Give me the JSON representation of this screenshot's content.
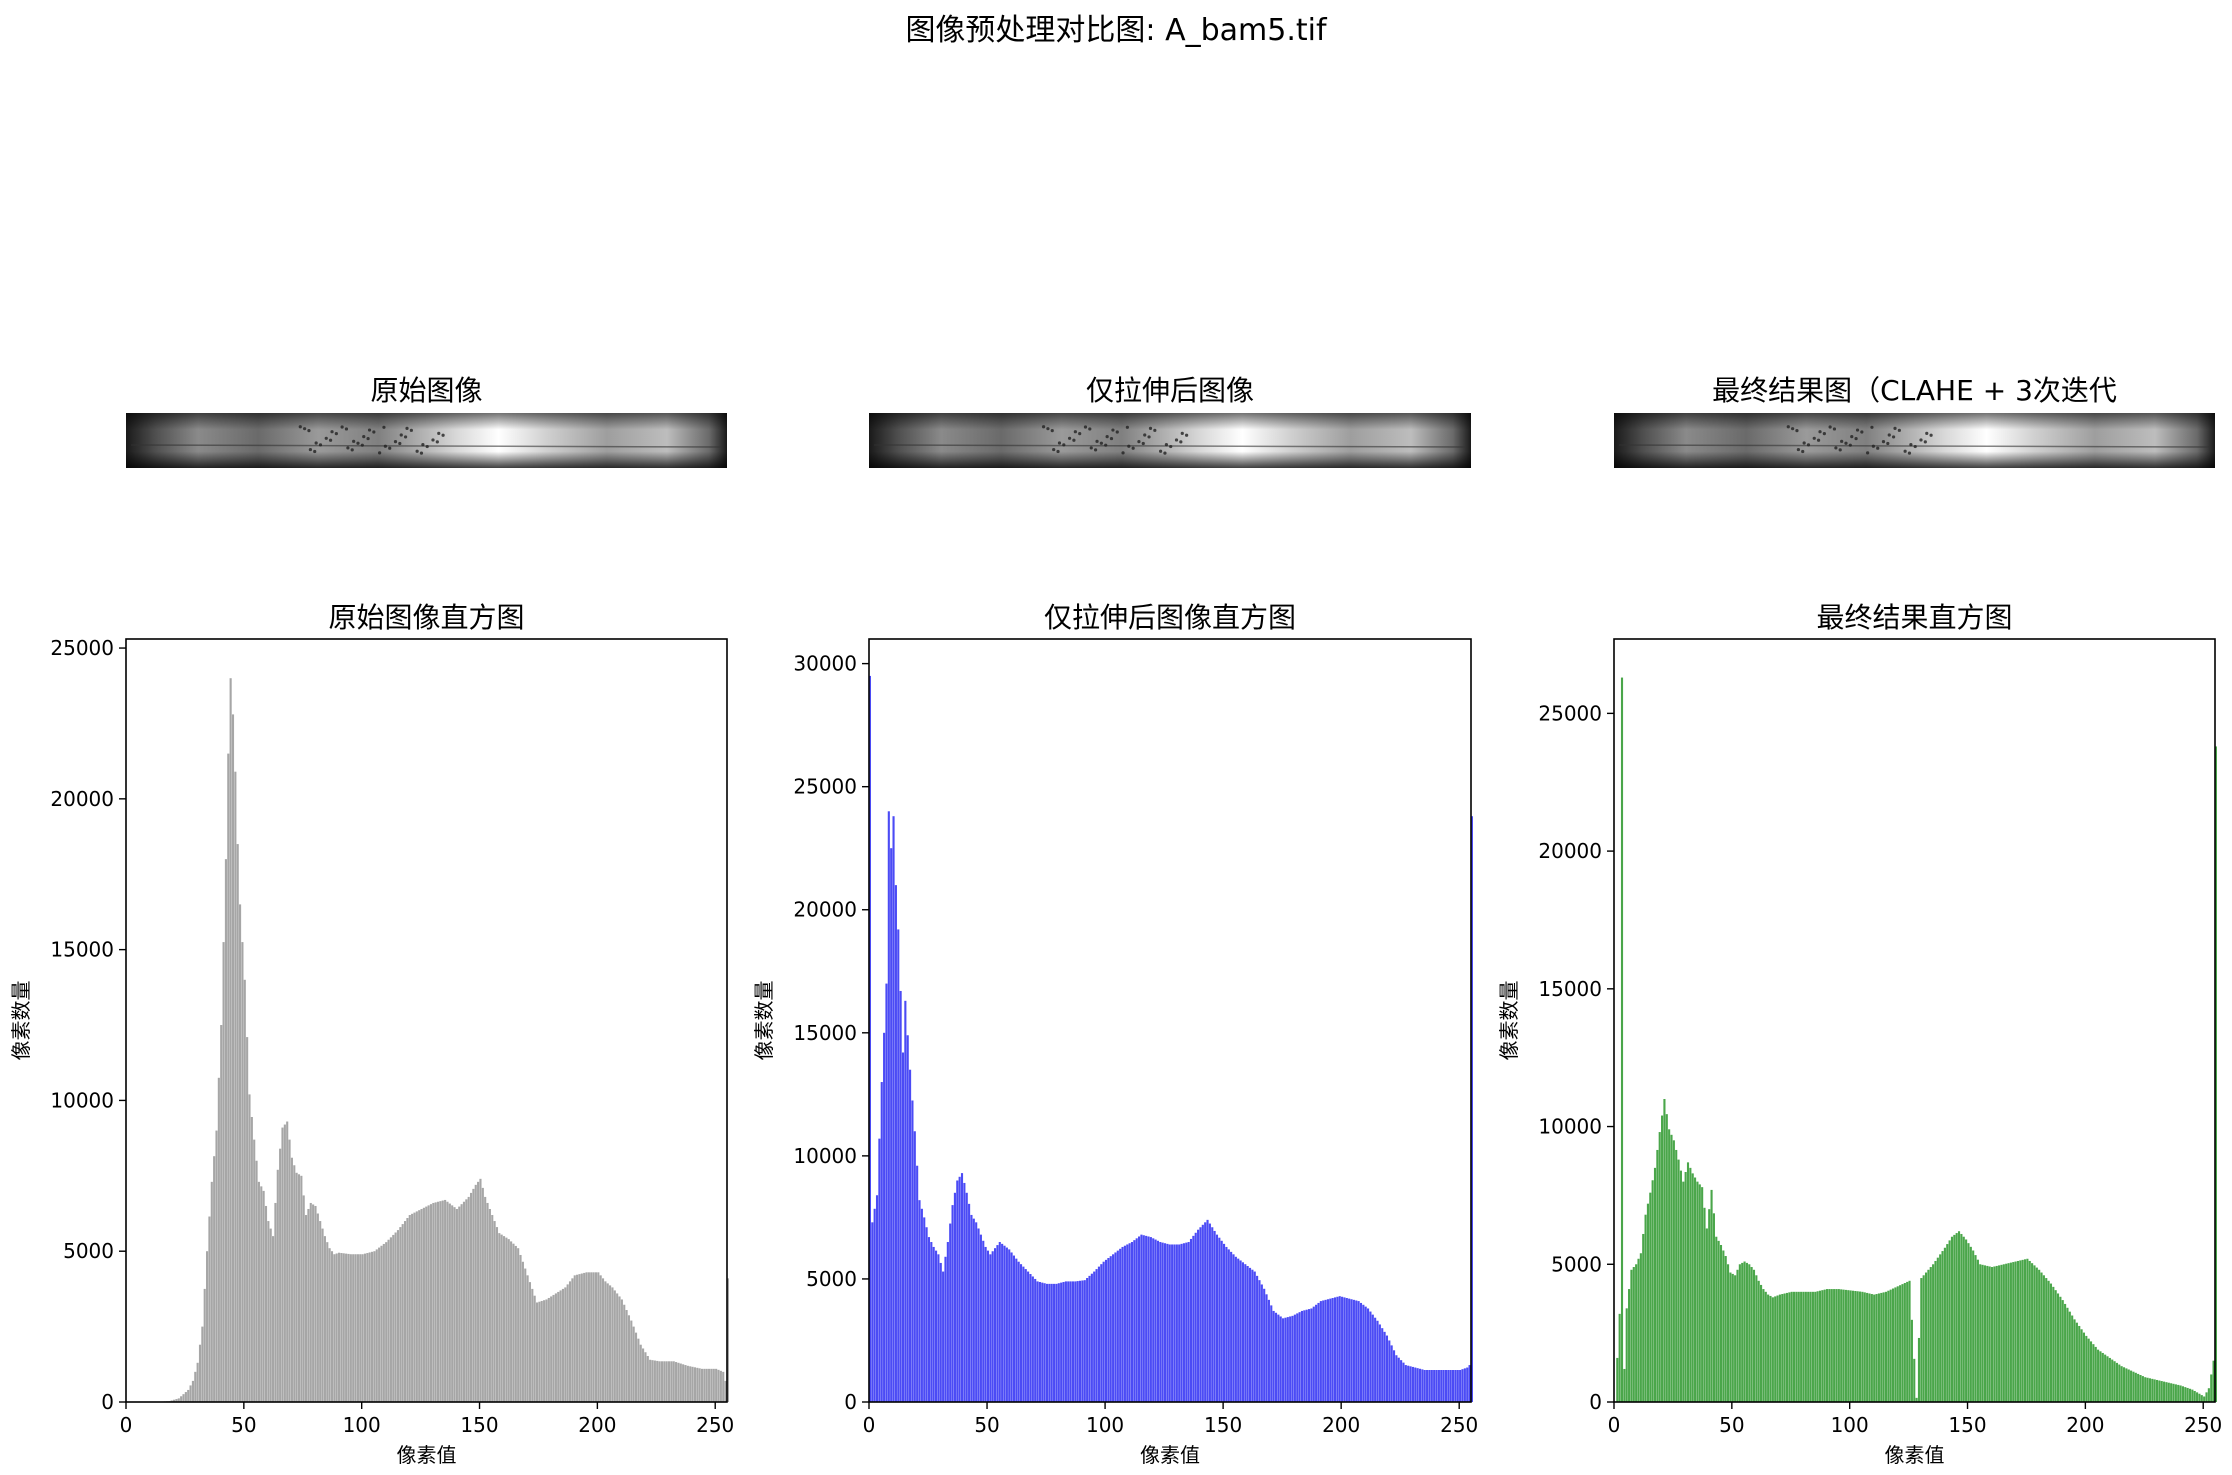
{
  "suptitle": "图像预处理对比图: A_bam5.tif",
  "image_panels": [
    {
      "title": "原始图像"
    },
    {
      "title": "仅拉伸后图像"
    },
    {
      "title": "最终结果图（CLAHE + 3次迭代"
    }
  ],
  "chart_data": [
    {
      "type": "bar",
      "title": "原始图像直方图",
      "xlabel": "像素值",
      "ylabel": "像素数量",
      "xlim": [
        0,
        255
      ],
      "ylim": [
        0,
        25300
      ],
      "xticks": [
        0,
        50,
        100,
        150,
        200,
        250
      ],
      "yticks": [
        0,
        5000,
        10000,
        15000,
        20000,
        25000
      ],
      "color": "#a6a6a6",
      "points": [
        [
          0,
          0
        ],
        [
          10,
          0
        ],
        [
          18,
          30
        ],
        [
          22,
          120
        ],
        [
          26,
          400
        ],
        [
          28,
          700
        ],
        [
          30,
          1300
        ],
        [
          32,
          2500
        ],
        [
          34,
          5000
        ],
        [
          36,
          7300
        ],
        [
          38,
          9000
        ],
        [
          40,
          12500
        ],
        [
          42,
          18000
        ],
        [
          43,
          21500
        ],
        [
          44,
          24000
        ],
        [
          45,
          22800
        ],
        [
          46,
          20900
        ],
        [
          47,
          18500
        ],
        [
          48,
          16500
        ],
        [
          50,
          14000
        ],
        [
          52,
          10200
        ],
        [
          54,
          8700
        ],
        [
          56,
          7300
        ],
        [
          58,
          7000
        ],
        [
          60,
          6000
        ],
        [
          62,
          5500
        ],
        [
          64,
          7700
        ],
        [
          66,
          9100
        ],
        [
          68,
          9300
        ],
        [
          70,
          8100
        ],
        [
          72,
          7600
        ],
        [
          74,
          7500
        ],
        [
          76,
          6200
        ],
        [
          78,
          6600
        ],
        [
          80,
          6500
        ],
        [
          82,
          6000
        ],
        [
          84,
          5500
        ],
        [
          86,
          5100
        ],
        [
          88,
          4900
        ],
        [
          90,
          4950
        ],
        [
          95,
          4900
        ],
        [
          100,
          4900
        ],
        [
          105,
          5000
        ],
        [
          110,
          5300
        ],
        [
          115,
          5700
        ],
        [
          120,
          6200
        ],
        [
          125,
          6400
        ],
        [
          130,
          6600
        ],
        [
          135,
          6700
        ],
        [
          140,
          6400
        ],
        [
          145,
          6800
        ],
        [
          148,
          7200
        ],
        [
          150,
          7400
        ],
        [
          152,
          6800
        ],
        [
          155,
          6200
        ],
        [
          158,
          5600
        ],
        [
          162,
          5400
        ],
        [
          166,
          5100
        ],
        [
          170,
          4200
        ],
        [
          174,
          3300
        ],
        [
          178,
          3400
        ],
        [
          182,
          3600
        ],
        [
          186,
          3800
        ],
        [
          190,
          4200
        ],
        [
          195,
          4300
        ],
        [
          200,
          4300
        ],
        [
          203,
          4000
        ],
        [
          206,
          3800
        ],
        [
          210,
          3400
        ],
        [
          214,
          2700
        ],
        [
          218,
          1900
        ],
        [
          222,
          1400
        ],
        [
          226,
          1350
        ],
        [
          232,
          1350
        ],
        [
          238,
          1200
        ],
        [
          244,
          1100
        ],
        [
          250,
          1100
        ],
        [
          253,
          1000
        ],
        [
          254,
          700
        ],
        [
          255,
          4100
        ]
      ]
    },
    {
      "type": "bar",
      "title": "仅拉伸后图像直方图",
      "xlabel": "像素值",
      "ylabel": "像素数量",
      "xlim": [
        0,
        255
      ],
      "ylim": [
        0,
        31000
      ],
      "xticks": [
        0,
        50,
        100,
        150,
        200,
        250
      ],
      "yticks": [
        0,
        5000,
        10000,
        15000,
        20000,
        25000,
        30000
      ],
      "color": "#4b4bf5",
      "points": [
        [
          0,
          29500
        ],
        [
          1,
          7300
        ],
        [
          3,
          8400
        ],
        [
          5,
          13000
        ],
        [
          7,
          17000
        ],
        [
          8,
          24000
        ],
        [
          9,
          22500
        ],
        [
          10,
          23800
        ],
        [
          11,
          21000
        ],
        [
          12,
          19200
        ],
        [
          14,
          14200
        ],
        [
          15,
          16300
        ],
        [
          17,
          13500
        ],
        [
          19,
          11000
        ],
        [
          21,
          8200
        ],
        [
          23,
          7500
        ],
        [
          25,
          6700
        ],
        [
          27,
          6300
        ],
        [
          29,
          6000
        ],
        [
          31,
          5300
        ],
        [
          33,
          6500
        ],
        [
          35,
          8000
        ],
        [
          37,
          9000
        ],
        [
          39,
          9300
        ],
        [
          41,
          8500
        ],
        [
          43,
          7600
        ],
        [
          45,
          7300
        ],
        [
          47,
          6800
        ],
        [
          49,
          6300
        ],
        [
          51,
          6000
        ],
        [
          55,
          6500
        ],
        [
          59,
          6200
        ],
        [
          63,
          5700
        ],
        [
          67,
          5300
        ],
        [
          71,
          4900
        ],
        [
          75,
          4800
        ],
        [
          79,
          4800
        ],
        [
          83,
          4900
        ],
        [
          87,
          4900
        ],
        [
          91,
          4950
        ],
        [
          95,
          5300
        ],
        [
          99,
          5700
        ],
        [
          103,
          6000
        ],
        [
          107,
          6300
        ],
        [
          111,
          6500
        ],
        [
          115,
          6800
        ],
        [
          119,
          6700
        ],
        [
          123,
          6500
        ],
        [
          127,
          6400
        ],
        [
          131,
          6400
        ],
        [
          135,
          6500
        ],
        [
          139,
          7000
        ],
        [
          143,
          7400
        ],
        [
          147,
          6800
        ],
        [
          151,
          6300
        ],
        [
          155,
          5900
        ],
        [
          159,
          5600
        ],
        [
          163,
          5300
        ],
        [
          167,
          4600
        ],
        [
          171,
          3700
        ],
        [
          175,
          3400
        ],
        [
          179,
          3500
        ],
        [
          183,
          3700
        ],
        [
          187,
          3800
        ],
        [
          191,
          4100
        ],
        [
          195,
          4200
        ],
        [
          199,
          4300
        ],
        [
          203,
          4200
        ],
        [
          207,
          4100
        ],
        [
          211,
          3800
        ],
        [
          215,
          3300
        ],
        [
          219,
          2700
        ],
        [
          223,
          1900
        ],
        [
          227,
          1500
        ],
        [
          231,
          1400
        ],
        [
          235,
          1300
        ],
        [
          240,
          1300
        ],
        [
          245,
          1300
        ],
        [
          250,
          1300
        ],
        [
          253,
          1400
        ],
        [
          254,
          1500
        ],
        [
          255,
          23800
        ]
      ]
    },
    {
      "type": "bar",
      "title": "最终结果直方图",
      "xlabel": "像素值",
      "ylabel": "像素数量",
      "xlim": [
        0,
        255
      ],
      "ylim": [
        0,
        27700
      ],
      "xticks": [
        0,
        50,
        100,
        150,
        200,
        250
      ],
      "yticks": [
        0,
        5000,
        10000,
        15000,
        20000,
        25000
      ],
      "color": "#4aa64a",
      "points": [
        [
          0,
          0
        ],
        [
          2,
          3200
        ],
        [
          3,
          26300
        ],
        [
          4,
          1200
        ],
        [
          5,
          3400
        ],
        [
          7,
          4800
        ],
        [
          9,
          5000
        ],
        [
          11,
          5400
        ],
        [
          13,
          6800
        ],
        [
          15,
          7600
        ],
        [
          17,
          8500
        ],
        [
          19,
          9800
        ],
        [
          21,
          11000
        ],
        [
          23,
          9900
        ],
        [
          25,
          9500
        ],
        [
          27,
          8800
        ],
        [
          29,
          8000
        ],
        [
          31,
          8700
        ],
        [
          33,
          8300
        ],
        [
          35,
          8000
        ],
        [
          37,
          7800
        ],
        [
          39,
          6300
        ],
        [
          41,
          7700
        ],
        [
          43,
          6000
        ],
        [
          45,
          5700
        ],
        [
          47,
          5300
        ],
        [
          49,
          4700
        ],
        [
          51,
          4600
        ],
        [
          53,
          5000
        ],
        [
          55,
          5100
        ],
        [
          57,
          5000
        ],
        [
          59,
          4800
        ],
        [
          61,
          4400
        ],
        [
          63,
          4100
        ],
        [
          65,
          3900
        ],
        [
          67,
          3800
        ],
        [
          70,
          3900
        ],
        [
          75,
          4000
        ],
        [
          80,
          4000
        ],
        [
          85,
          4000
        ],
        [
          90,
          4100
        ],
        [
          95,
          4100
        ],
        [
          100,
          4050
        ],
        [
          105,
          4000
        ],
        [
          110,
          3900
        ],
        [
          115,
          4000
        ],
        [
          120,
          4200
        ],
        [
          125,
          4400
        ],
        [
          128,
          150
        ],
        [
          130,
          4500
        ],
        [
          135,
          5000
        ],
        [
          140,
          5600
        ],
        [
          143,
          6000
        ],
        [
          146,
          6200
        ],
        [
          149,
          5900
        ],
        [
          152,
          5500
        ],
        [
          155,
          5000
        ],
        [
          160,
          4900
        ],
        [
          165,
          5000
        ],
        [
          170,
          5100
        ],
        [
          175,
          5200
        ],
        [
          180,
          4800
        ],
        [
          185,
          4300
        ],
        [
          190,
          3700
        ],
        [
          195,
          3000
        ],
        [
          200,
          2400
        ],
        [
          205,
          1900
        ],
        [
          210,
          1600
        ],
        [
          215,
          1300
        ],
        [
          220,
          1100
        ],
        [
          225,
          900
        ],
        [
          230,
          800
        ],
        [
          235,
          700
        ],
        [
          240,
          600
        ],
        [
          245,
          450
        ],
        [
          248,
          300
        ],
        [
          250,
          200
        ],
        [
          252,
          500
        ],
        [
          254,
          1500
        ],
        [
          255,
          23800
        ]
      ]
    }
  ]
}
